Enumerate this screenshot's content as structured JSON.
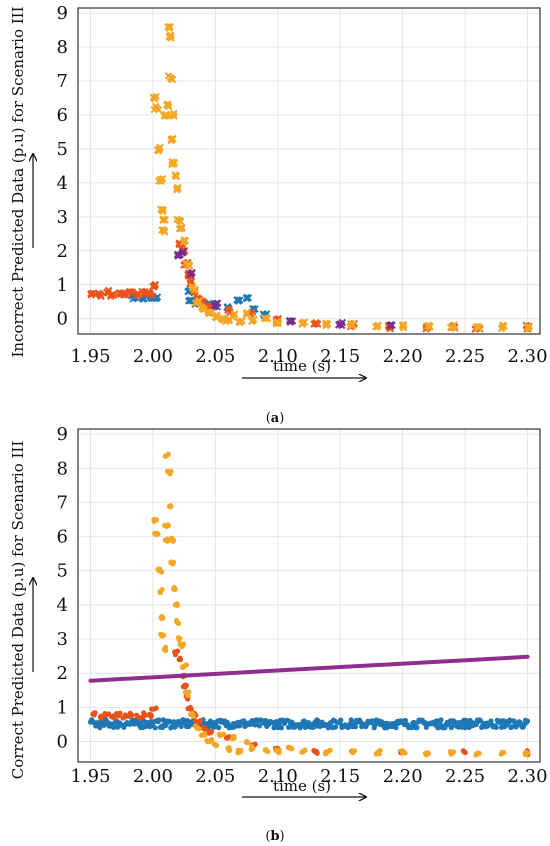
{
  "chart_data": [
    {
      "type": "scatter",
      "panel": "a",
      "caption_letter": "a",
      "xlabel": "time (s)",
      "ylabel": "Incorrect Predicted Data (p.u) for Scenario III",
      "xlim": [
        1.94,
        2.31
      ],
      "ylim": [
        -0.45,
        9.15
      ],
      "xticks": [
        "1.95",
        "2.00",
        "2.05",
        "2.10",
        "2.15",
        "2.20",
        "2.25",
        "2.30"
      ],
      "xtick_values": [
        1.95,
        2.0,
        2.05,
        2.1,
        2.15,
        2.2,
        2.25,
        2.3
      ],
      "yticks": [
        "0",
        "1",
        "2",
        "3",
        "4",
        "5",
        "6",
        "7",
        "8",
        "9"
      ],
      "ytick_values": [
        0,
        1,
        2,
        3,
        4,
        5,
        6,
        7,
        8,
        9
      ],
      "grid": true,
      "marker": "x",
      "series": [
        {
          "color": "#1f77b4",
          "points": [
            [
              1.985,
              0.62
            ],
            [
              1.992,
              0.58
            ],
            [
              1.998,
              0.65
            ],
            [
              2.002,
              0.6
            ],
            [
              2.028,
              0.8
            ],
            [
              2.03,
              0.55
            ],
            [
              2.034,
              0.45
            ],
            [
              2.045,
              0.45
            ],
            [
              2.05,
              0.4
            ],
            [
              2.06,
              0.35
            ],
            [
              2.068,
              0.55
            ],
            [
              2.075,
              0.6
            ],
            [
              2.08,
              0.3
            ],
            [
              2.09,
              0.1
            ]
          ]
        },
        {
          "color": "#e8531c",
          "points": [
            [
              1.952,
              0.75
            ],
            [
              1.958,
              0.7
            ],
            [
              1.963,
              0.78
            ],
            [
              1.968,
              0.72
            ],
            [
              1.973,
              0.76
            ],
            [
              1.978,
              0.7
            ],
            [
              1.983,
              0.74
            ],
            [
              1.988,
              0.71
            ],
            [
              1.993,
              0.77
            ],
            [
              1.998,
              0.73
            ],
            [
              2.0,
              0.95
            ],
            [
              2.022,
              2.2
            ],
            [
              2.024,
              2.0
            ],
            [
              2.026,
              1.6
            ],
            [
              2.028,
              1.3
            ],
            [
              2.03,
              1.05
            ],
            [
              2.033,
              0.8
            ],
            [
              2.036,
              0.6
            ],
            [
              2.04,
              0.5
            ],
            [
              2.045,
              0.35
            ],
            [
              2.06,
              0.25
            ],
            [
              2.08,
              0.2
            ],
            [
              2.1,
              -0.05
            ],
            [
              2.13,
              -0.15
            ],
            [
              2.16,
              -0.2
            ],
            [
              2.19,
              -0.25
            ],
            [
              2.22,
              -0.25
            ],
            [
              2.26,
              -0.25
            ],
            [
              2.3,
              -0.25
            ]
          ]
        },
        {
          "color": "#7b2d8e",
          "points": [
            [
              2.02,
              1.85
            ],
            [
              2.024,
              1.95
            ],
            [
              2.03,
              1.3
            ],
            [
              2.05,
              0.4
            ],
            [
              2.11,
              -0.1
            ],
            [
              2.15,
              -0.15
            ],
            [
              2.19,
              -0.2
            ],
            [
              2.24,
              -0.22
            ]
          ]
        },
        {
          "color": "#f5a623",
          "points": [
            [
              2.001,
              6.5
            ],
            [
              2.003,
              6.2
            ],
            [
              2.005,
              5.0
            ],
            [
              2.006,
              4.1
            ],
            [
              2.007,
              3.2
            ],
            [
              2.008,
              2.9
            ],
            [
              2.009,
              2.6
            ],
            [
              2.01,
              6.0
            ],
            [
              2.011,
              6.3
            ],
            [
              2.012,
              8.6
            ],
            [
              2.013,
              8.3
            ],
            [
              2.014,
              7.1
            ],
            [
              2.015,
              6.0
            ],
            [
              2.016,
              5.3
            ],
            [
              2.017,
              4.6
            ],
            [
              2.018,
              4.2
            ],
            [
              2.019,
              3.8
            ],
            [
              2.021,
              2.9
            ],
            [
              2.023,
              2.7
            ],
            [
              2.026,
              2.3
            ],
            [
              2.028,
              1.6
            ],
            [
              2.032,
              0.9
            ],
            [
              2.036,
              0.5
            ],
            [
              2.04,
              0.3
            ],
            [
              2.045,
              0.15
            ],
            [
              2.05,
              0.05
            ],
            [
              2.055,
              0.0
            ],
            [
              2.06,
              -0.05
            ],
            [
              2.065,
              0.1
            ],
            [
              2.07,
              -0.1
            ],
            [
              2.075,
              0.15
            ],
            [
              2.08,
              -0.05
            ],
            [
              2.09,
              0.0
            ],
            [
              2.1,
              -0.1
            ],
            [
              2.12,
              -0.12
            ],
            [
              2.14,
              -0.15
            ],
            [
              2.16,
              -0.18
            ],
            [
              2.18,
              -0.2
            ],
            [
              2.2,
              -0.22
            ],
            [
              2.22,
              -0.22
            ],
            [
              2.24,
              -0.23
            ],
            [
              2.26,
              -0.24
            ],
            [
              2.28,
              -0.24
            ],
            [
              2.3,
              -0.25
            ]
          ]
        }
      ]
    },
    {
      "type": "scatter",
      "panel": "b",
      "caption_letter": "b",
      "xlabel": "time (s)",
      "ylabel": "Correct Predicted Data (p.u) for Scenario III",
      "xlim": [
        1.94,
        2.31
      ],
      "ylim": [
        -0.6,
        9.15
      ],
      "xticks": [
        "1.95",
        "2.00",
        "2.05",
        "2.10",
        "2.15",
        "2.20",
        "2.25",
        "2.30"
      ],
      "xtick_values": [
        1.95,
        2.0,
        2.05,
        2.1,
        2.15,
        2.2,
        2.25,
        2.3
      ],
      "yticks": [
        "0",
        "1",
        "2",
        "3",
        "4",
        "5",
        "6",
        "7",
        "8",
        "9"
      ],
      "ytick_values": [
        0,
        1,
        2,
        3,
        4,
        5,
        6,
        7,
        8,
        9
      ],
      "grid": true,
      "marker": "dot",
      "line": {
        "color": "#8e2f8f",
        "points": [
          [
            1.95,
            1.78
          ],
          [
            2.3,
            2.48
          ]
        ]
      },
      "series": [
        {
          "color": "#1f77b4",
          "band": {
            "x_start": 1.95,
            "x_end": 2.3,
            "center": 0.52,
            "spread": 0.12
          }
        },
        {
          "color": "#e8531c",
          "points": [
            [
              1.952,
              0.8
            ],
            [
              1.958,
              0.72
            ],
            [
              1.963,
              0.78
            ],
            [
              1.968,
              0.74
            ],
            [
              1.973,
              0.79
            ],
            [
              1.978,
              0.72
            ],
            [
              1.983,
              0.77
            ],
            [
              1.988,
              0.73
            ],
            [
              1.993,
              0.78
            ],
            [
              1.998,
              0.75
            ],
            [
              2.001,
              0.95
            ],
            [
              2.018,
              2.6
            ],
            [
              2.021,
              2.4
            ],
            [
              2.024,
              1.9
            ],
            [
              2.026,
              1.6
            ],
            [
              2.028,
              1.3
            ],
            [
              2.03,
              1.0
            ],
            [
              2.033,
              0.8
            ],
            [
              2.036,
              0.55
            ],
            [
              2.04,
              0.4
            ],
            [
              2.045,
              0.3
            ],
            [
              2.06,
              0.1
            ],
            [
              2.08,
              -0.1
            ],
            [
              2.1,
              -0.2
            ],
            [
              2.13,
              -0.3
            ],
            [
              2.16,
              -0.3
            ],
            [
              2.2,
              -0.32
            ],
            [
              2.25,
              -0.32
            ],
            [
              2.3,
              -0.32
            ]
          ]
        },
        {
          "color": "#f5a623",
          "points": [
            [
              2.001,
              6.5
            ],
            [
              2.003,
              6.1
            ],
            [
              2.005,
              5.0
            ],
            [
              2.006,
              4.4
            ],
            [
              2.007,
              3.6
            ],
            [
              2.008,
              3.1
            ],
            [
              2.009,
              2.7
            ],
            [
              2.01,
              5.9
            ],
            [
              2.011,
              6.3
            ],
            [
              2.012,
              8.4
            ],
            [
              2.013,
              7.9
            ],
            [
              2.014,
              6.9
            ],
            [
              2.015,
              5.9
            ],
            [
              2.016,
              5.2
            ],
            [
              2.017,
              4.5
            ],
            [
              2.018,
              4.0
            ],
            [
              2.019,
              3.5
            ],
            [
              2.021,
              3.0
            ],
            [
              2.023,
              2.8
            ],
            [
              2.025,
              2.2
            ],
            [
              2.028,
              1.4
            ],
            [
              2.032,
              0.8
            ],
            [
              2.036,
              0.4
            ],
            [
              2.04,
              0.2
            ],
            [
              2.045,
              0.0
            ],
            [
              2.05,
              -0.1
            ],
            [
              2.055,
              0.2
            ],
            [
              2.06,
              -0.2
            ],
            [
              2.065,
              0.1
            ],
            [
              2.07,
              -0.3
            ],
            [
              2.075,
              0.0
            ],
            [
              2.08,
              -0.2
            ],
            [
              2.09,
              -0.25
            ],
            [
              2.1,
              -0.3
            ],
            [
              2.11,
              -0.2
            ],
            [
              2.12,
              -0.3
            ],
            [
              2.14,
              -0.3
            ],
            [
              2.16,
              -0.32
            ],
            [
              2.18,
              -0.32
            ],
            [
              2.2,
              -0.33
            ],
            [
              2.22,
              -0.33
            ],
            [
              2.24,
              -0.33
            ],
            [
              2.26,
              -0.34
            ],
            [
              2.28,
              -0.34
            ],
            [
              2.3,
              -0.34
            ]
          ]
        }
      ]
    }
  ]
}
